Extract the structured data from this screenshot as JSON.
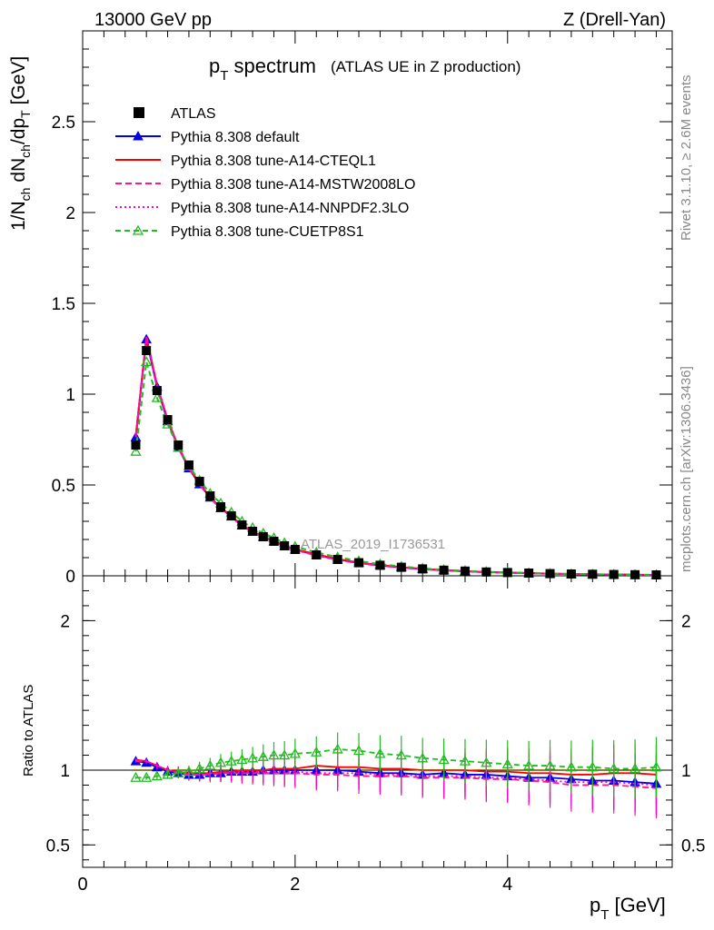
{
  "header": {
    "left": "13000 GeV pp",
    "right": "Z (Drell-Yan)"
  },
  "title": {
    "main_p": "p",
    "main_sub": "T",
    "main_rest": " spectrum",
    "sub": "(ATLAS UE in Z production)"
  },
  "side_labels": {
    "rivet": "Rivet 3.1.10, ≥ 2.6M events",
    "mcplots": "mcplots.cern.ch [arXiv:1306.3436]"
  },
  "watermark": "ATLAS_2019_I1736531",
  "axes": {
    "ylabel_top": "1/N_ch dN_ch/dp_T [GeV]",
    "ylabel_bottom": "Ratio to ATLAS",
    "xlabel": "p_T [GeV]",
    "top_yticks": [
      "0",
      "0.5",
      "1",
      "1.5",
      "2",
      "2.5"
    ],
    "bottom_yticks": [
      "0.5",
      "1",
      "2"
    ],
    "xticks": [
      "0",
      "2",
      "4"
    ]
  },
  "legend": [
    {
      "label": "ATLAS",
      "color": "#000000",
      "style": "data"
    },
    {
      "label": "Pythia 8.308 default",
      "color": "#0000ee",
      "style": "solid-triangle"
    },
    {
      "label": "Pythia 8.308 tune-A14-CTEQL1",
      "color": "#ff0000",
      "style": "solid"
    },
    {
      "label": "Pythia 8.308 tune-A14-MSTW2008LO",
      "color": "#ff1493",
      "style": "dashed"
    },
    {
      "label": "Pythia 8.308 tune-A14-NNPDF2.3LO",
      "color": "#ff00cc",
      "style": "dotted"
    },
    {
      "label": "Pythia 8.308 tune-CUETP8S1",
      "color": "#22bb22",
      "style": "dashed-open-triangle"
    }
  ],
  "chart_data": {
    "type": "line",
    "xlim": [
      0,
      5.55
    ],
    "ylim_top": [
      0,
      3.0
    ],
    "ylim_ratio": [
      0.35,
      2.3
    ],
    "x": [
      0.5,
      0.6,
      0.7,
      0.8,
      0.9,
      1.0,
      1.1,
      1.2,
      1.3,
      1.4,
      1.5,
      1.6,
      1.7,
      1.8,
      1.9,
      2.0,
      2.2,
      2.4,
      2.6,
      2.8,
      3.0,
      3.2,
      3.4,
      3.6,
      3.8,
      4.0,
      4.2,
      4.4,
      4.6,
      4.8,
      5.0,
      5.2,
      5.4
    ],
    "atlas": [
      0.72,
      1.24,
      1.02,
      0.86,
      0.72,
      0.61,
      0.52,
      0.44,
      0.38,
      0.33,
      0.28,
      0.245,
      0.215,
      0.19,
      0.165,
      0.145,
      0.115,
      0.09,
      0.072,
      0.058,
      0.047,
      0.038,
      0.031,
      0.026,
      0.021,
      0.018,
      0.015,
      0.012,
      0.01,
      0.0085,
      0.0072,
      0.006,
      0.005
    ],
    "series": [
      {
        "name": "Pythia 8.308 default",
        "ratio": [
          1.06,
          1.05,
          1.02,
          0.99,
          0.98,
          0.97,
          0.97,
          0.98,
          0.98,
          0.99,
          0.99,
          0.99,
          1.0,
          1.0,
          1.0,
          1.0,
          1.0,
          1.0,
          0.99,
          0.98,
          0.98,
          0.97,
          0.98,
          0.97,
          0.97,
          0.96,
          0.95,
          0.95,
          0.94,
          0.93,
          0.93,
          0.92,
          0.91
        ]
      },
      {
        "name": "Pythia 8.308 tune-A14-CTEQL1",
        "ratio": [
          1.07,
          1.06,
          1.03,
          1.0,
          0.99,
          0.98,
          0.98,
          0.98,
          0.99,
          0.99,
          1.0,
          1.0,
          1.0,
          1.01,
          1.01,
          1.01,
          1.03,
          1.02,
          1.02,
          1.01,
          1.01,
          1.0,
          1.0,
          1.0,
          0.99,
          0.99,
          0.98,
          0.98,
          0.97,
          0.97,
          0.98,
          0.98,
          0.97
        ]
      },
      {
        "name": "Pythia 8.308 tune-A14-MSTW2008LO",
        "ratio": [
          1.06,
          1.06,
          1.03,
          1.0,
          0.98,
          0.97,
          0.97,
          0.97,
          0.98,
          0.98,
          0.98,
          0.98,
          0.98,
          0.98,
          0.98,
          0.98,
          0.97,
          0.97,
          0.96,
          0.96,
          0.96,
          0.95,
          0.95,
          0.95,
          0.94,
          0.94,
          0.93,
          0.92,
          0.9,
          0.9,
          0.9,
          0.89,
          0.88
        ]
      },
      {
        "name": "Pythia 8.308 tune-A14-NNPDF2.3LO",
        "ratio": [
          1.07,
          1.06,
          1.03,
          1.0,
          0.99,
          0.98,
          0.97,
          0.98,
          0.98,
          0.99,
          0.99,
          0.99,
          0.99,
          0.99,
          0.99,
          0.99,
          0.98,
          0.98,
          0.98,
          0.97,
          0.97,
          0.96,
          0.96,
          0.96,
          0.95,
          0.95,
          0.94,
          0.93,
          0.92,
          0.92,
          0.92,
          0.91,
          0.9
        ]
      },
      {
        "name": "Pythia 8.308 tune-CUETP8S1",
        "ratio": [
          0.95,
          0.95,
          0.96,
          0.97,
          0.98,
          0.99,
          1.01,
          1.03,
          1.05,
          1.06,
          1.07,
          1.08,
          1.09,
          1.1,
          1.1,
          1.11,
          1.12,
          1.14,
          1.13,
          1.11,
          1.1,
          1.08,
          1.07,
          1.06,
          1.05,
          1.04,
          1.03,
          1.03,
          1.02,
          1.02,
          1.01,
          1.01,
          1.02
        ]
      }
    ]
  }
}
